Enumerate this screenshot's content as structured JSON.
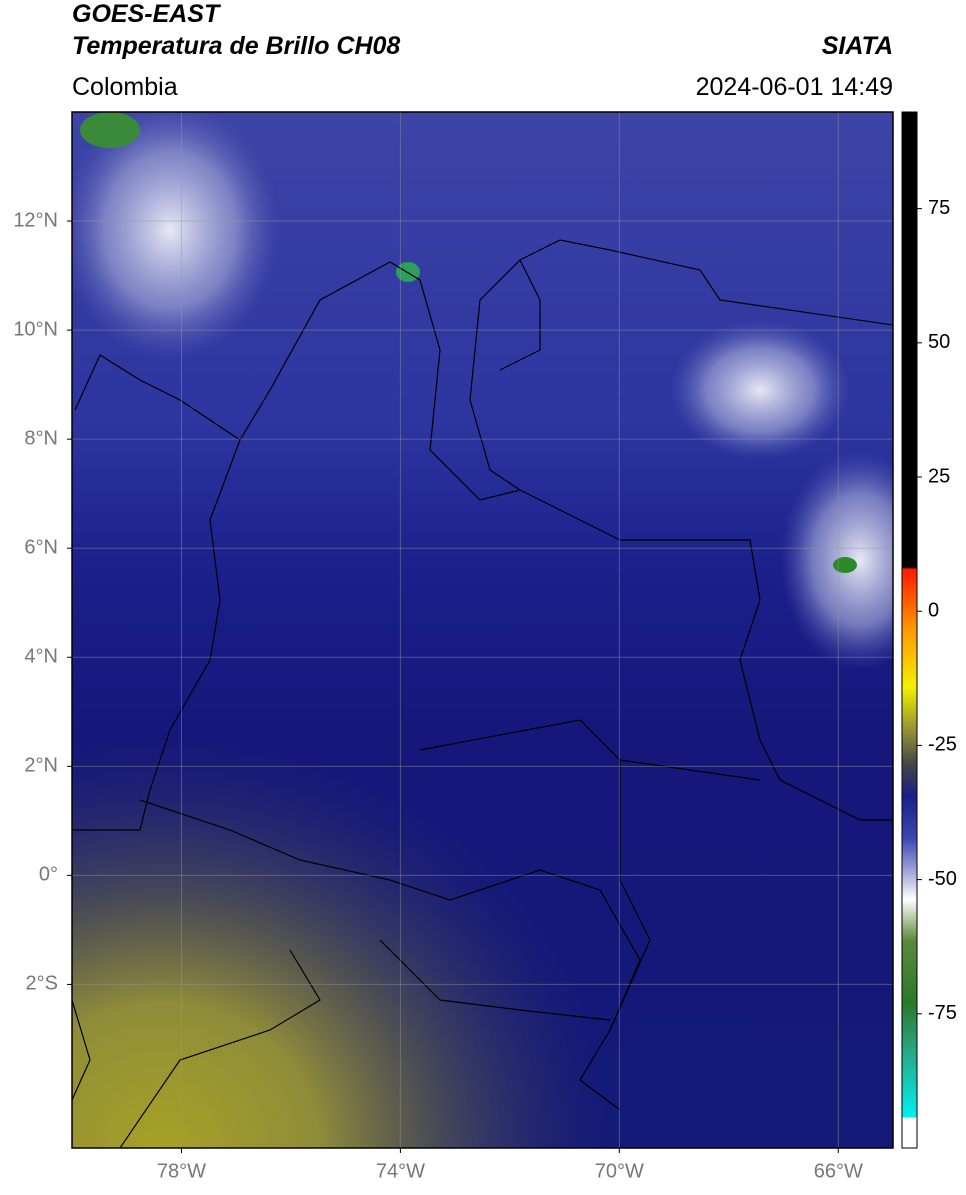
{
  "header": {
    "title": "GOES-EAST",
    "subtitle": "Temperatura de Brillo CH08",
    "source": "SIATA",
    "region": "Colombia",
    "timestamp": "2024-06-01 14:49"
  },
  "map": {
    "lonlim": [
      -80,
      -65
    ],
    "latlim": [
      -5,
      14
    ],
    "lonticks": [
      {
        "value": -78,
        "label": "78°W"
      },
      {
        "value": -74,
        "label": "74°W"
      },
      {
        "value": -70,
        "label": "70°W"
      },
      {
        "value": -66,
        "label": "66°W"
      }
    ],
    "latticks": [
      {
        "value": 12,
        "label": "12°N"
      },
      {
        "value": 10,
        "label": "10°N"
      },
      {
        "value": 8,
        "label": "8°N"
      },
      {
        "value": 6,
        "label": "6°N"
      },
      {
        "value": 4,
        "label": "4°N"
      },
      {
        "value": 2,
        "label": "2°N"
      },
      {
        "value": 0,
        "label": "0°"
      },
      {
        "value": -2,
        "label": "2°S"
      }
    ]
  },
  "colorbar": {
    "lim": [
      -100,
      93
    ],
    "ticks": [
      75,
      50,
      25,
      0,
      -25,
      -50,
      -75
    ]
  }
}
